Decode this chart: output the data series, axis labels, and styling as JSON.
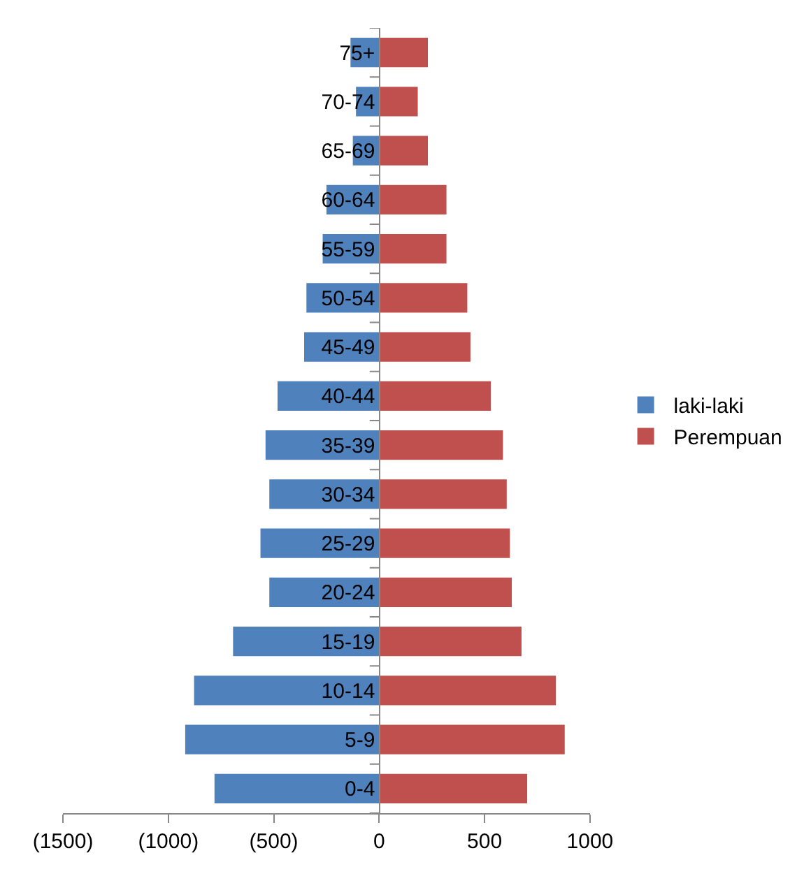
{
  "chart_data": {
    "type": "bar",
    "orientation": "horizontal",
    "categories": [
      "75+",
      "70-74",
      "65-69",
      "60-64",
      "55-59",
      "50-54",
      "45-49",
      "40-44",
      "35-39",
      "30-34",
      "25-29",
      "20-24",
      "15-19",
      "10-14",
      "5-9",
      "0-4"
    ],
    "series": [
      {
        "name": "laki-laki",
        "color": "#4f81bd",
        "values": [
          -136,
          -110,
          -125,
          -250,
          -268,
          -345,
          -356,
          -482,
          -539,
          -521,
          -563,
          -521,
          -693,
          -878,
          -920,
          -781
        ]
      },
      {
        "name": "Perempuan",
        "color": "#c0504d",
        "values": [
          231,
          183,
          231,
          319,
          319,
          418,
          433,
          530,
          587,
          605,
          620,
          629,
          675,
          838,
          880,
          702
        ]
      }
    ],
    "xlim": [
      -1500,
      1000
    ],
    "xticks": [
      {
        "value": -1500,
        "label": "(1500)"
      },
      {
        "value": -1000,
        "label": "(1000)"
      },
      {
        "value": -500,
        "label": "(500)"
      },
      0,
      500,
      1000
    ],
    "stacked": true,
    "legend": "right"
  }
}
